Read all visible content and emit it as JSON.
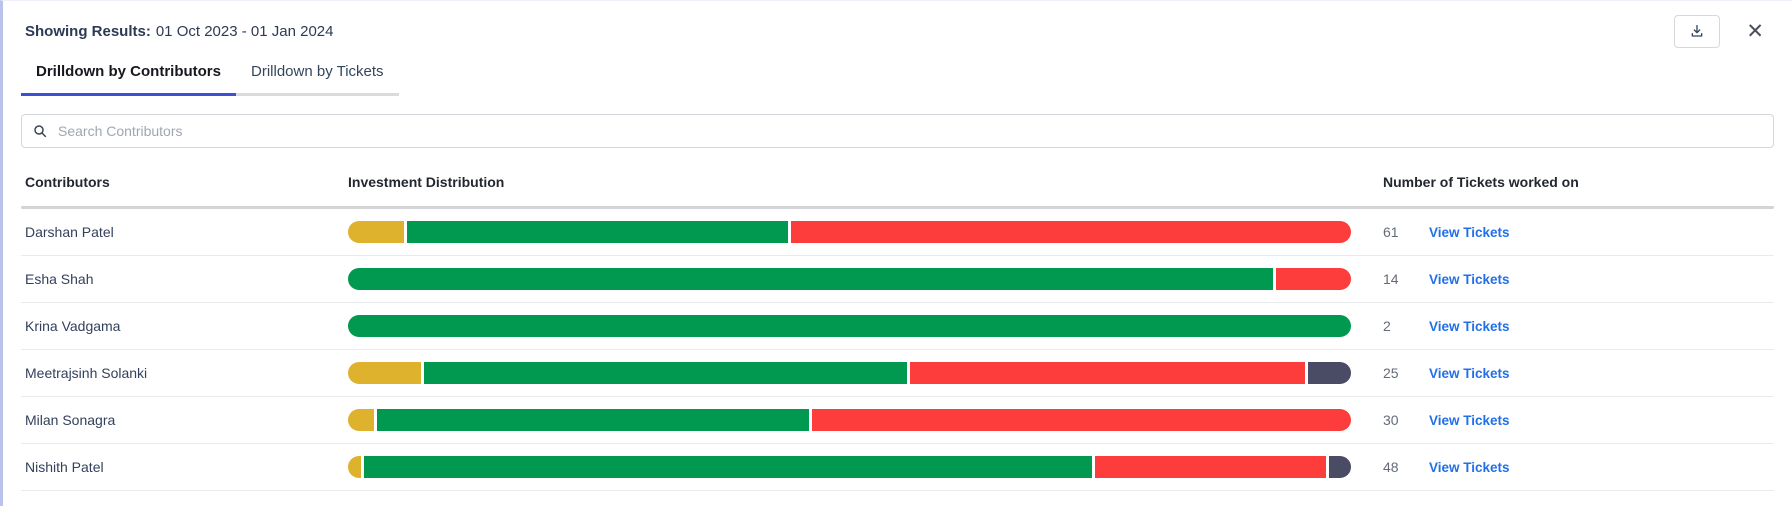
{
  "panel": {
    "header": {
      "label": "Showing Results:",
      "value": "01 Oct 2023 - 01 Jan 2024"
    },
    "actions": {
      "download_icon": "download-icon",
      "close_glyph": "✕"
    },
    "tabs": [
      {
        "label": "Drilldown by Contributors",
        "active": true
      },
      {
        "label": "Drilldown by Tickets",
        "active": false
      }
    ],
    "search": {
      "placeholder": "Search Contributors",
      "icon": "search-icon",
      "value": ""
    },
    "table": {
      "columns": [
        "Contributors",
        "Investment Distribution",
        "Number of Tickets worked on"
      ],
      "rows": [
        {
          "name": "Darshan Patel",
          "tickets": "61",
          "link": "View Tickets",
          "segments": [
            {
              "color": "yellow",
              "pct": 5.6
            },
            {
              "color": "green",
              "pct": 38.2
            },
            {
              "color": "red",
              "pct": 56.2
            }
          ]
        },
        {
          "name": "Esha Shah",
          "tickets": "14",
          "link": "View Tickets",
          "segments": [
            {
              "color": "green",
              "pct": 92.5
            },
            {
              "color": "red",
              "pct": 7.5
            }
          ]
        },
        {
          "name": "Krina Vadgama",
          "tickets": "2",
          "link": "View Tickets",
          "segments": [
            {
              "color": "green",
              "pct": 100
            }
          ]
        },
        {
          "name": "Meetrajsinh Solanki",
          "tickets": "25",
          "link": "View Tickets",
          "segments": [
            {
              "color": "yellow",
              "pct": 7.3
            },
            {
              "color": "green",
              "pct": 48.6
            },
            {
              "color": "red",
              "pct": 39.8
            },
            {
              "color": "dark",
              "pct": 4.3
            }
          ]
        },
        {
          "name": "Milan Sonagra",
          "tickets": "30",
          "link": "View Tickets",
          "segments": [
            {
              "color": "yellow",
              "pct": 2.6
            },
            {
              "color": "green",
              "pct": 43.3
            },
            {
              "color": "red",
              "pct": 54.1
            }
          ]
        },
        {
          "name": "Nishith Patel",
          "tickets": "48",
          "link": "View Tickets",
          "segments": [
            {
              "color": "yellow",
              "pct": 1.3
            },
            {
              "color": "green",
              "pct": 73.2
            },
            {
              "color": "red",
              "pct": 23.3
            },
            {
              "color": "dark",
              "pct": 2.2
            }
          ]
        }
      ]
    },
    "colors": {
      "yellow": "#DEB22D",
      "green": "#00994F",
      "red": "#FC3D3B",
      "dark": "#4A4C66",
      "accent": "#3A50D9",
      "link": "#2270E8",
      "panel_edge": "#B9C3EC"
    }
  }
}
